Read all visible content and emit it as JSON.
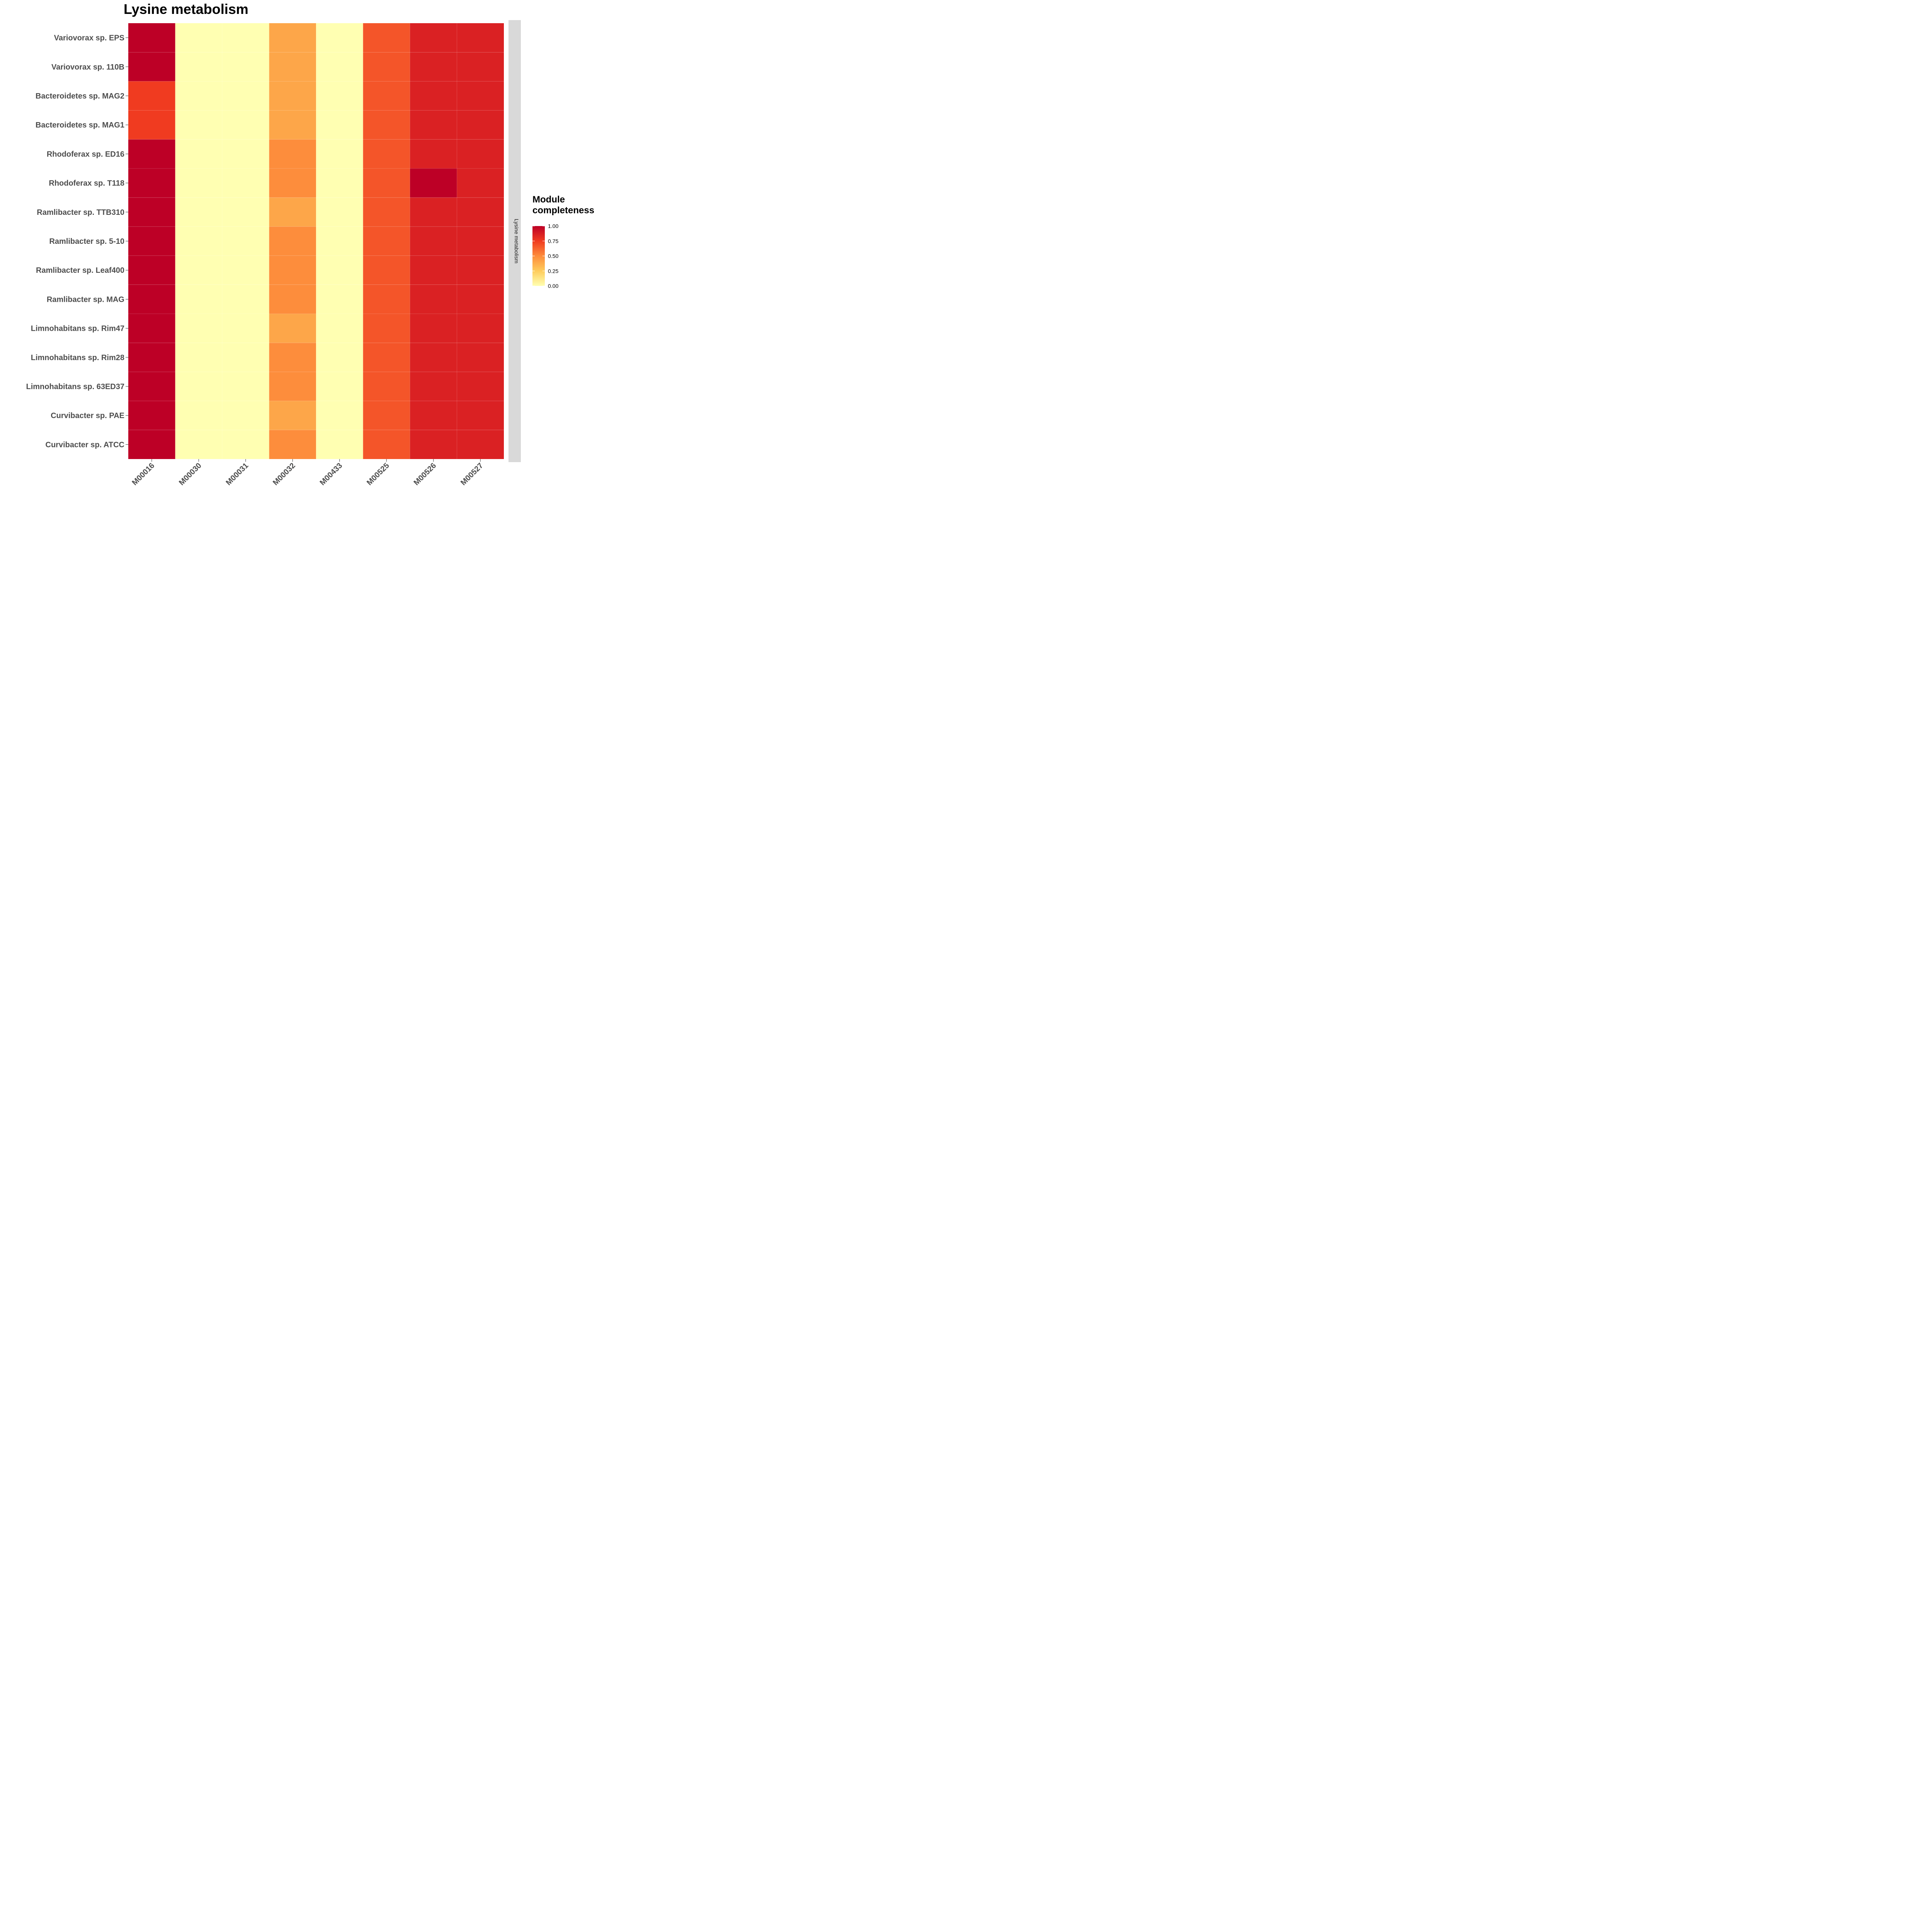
{
  "chart_data": {
    "type": "heatmap",
    "title": "Lysine metabolism",
    "facet_label": "Lysine metabolism",
    "x_categories": [
      "M00016",
      "M00030",
      "M00031",
      "M00032",
      "M00433",
      "M00525",
      "M00526",
      "M00527"
    ],
    "y_categories": [
      "Variovorax sp. EPS",
      "Variovorax sp. 110B",
      "Bacteroidetes sp. MAG2",
      "Bacteroidetes sp. MAG1",
      "Rhodoferax sp. ED16",
      "Rhodoferax sp. T118",
      "Ramlibacter sp. TTB310",
      "Ramlibacter sp. 5-10",
      "Ramlibacter sp. Leaf400",
      "Ramlibacter sp. MAG",
      "Limnohabitans sp. Rim47",
      "Limnohabitans sp. Rim28",
      "Limnohabitans sp. 63ED37",
      "Curvibacter sp. PAE",
      "Curvibacter sp. ATCC"
    ],
    "values": [
      [
        1.0,
        0.0,
        0.0,
        0.4,
        0.0,
        0.67,
        0.86,
        0.86
      ],
      [
        1.0,
        0.0,
        0.0,
        0.4,
        0.0,
        0.67,
        0.86,
        0.86
      ],
      [
        0.75,
        0.0,
        0.0,
        0.4,
        0.0,
        0.67,
        0.86,
        0.86
      ],
      [
        0.75,
        0.0,
        0.0,
        0.4,
        0.0,
        0.67,
        0.86,
        0.86
      ],
      [
        1.0,
        0.0,
        0.0,
        0.5,
        0.0,
        0.67,
        0.86,
        0.86
      ],
      [
        1.0,
        0.0,
        0.0,
        0.5,
        0.0,
        0.67,
        1.0,
        0.86
      ],
      [
        1.0,
        0.0,
        0.0,
        0.4,
        0.0,
        0.67,
        0.86,
        0.86
      ],
      [
        1.0,
        0.0,
        0.0,
        0.5,
        0.0,
        0.67,
        0.86,
        0.86
      ],
      [
        1.0,
        0.0,
        0.0,
        0.5,
        0.0,
        0.67,
        0.86,
        0.86
      ],
      [
        1.0,
        0.0,
        0.0,
        0.5,
        0.0,
        0.67,
        0.86,
        0.86
      ],
      [
        1.0,
        0.0,
        0.0,
        0.4,
        0.0,
        0.67,
        0.86,
        0.86
      ],
      [
        1.0,
        0.0,
        0.0,
        0.5,
        0.0,
        0.67,
        0.86,
        0.86
      ],
      [
        1.0,
        0.0,
        0.0,
        0.5,
        0.0,
        0.67,
        0.86,
        0.86
      ],
      [
        1.0,
        0.0,
        0.0,
        0.4,
        0.0,
        0.67,
        0.86,
        0.86
      ],
      [
        1.0,
        0.0,
        0.0,
        0.5,
        0.0,
        0.67,
        0.86,
        0.86
      ]
    ],
    "color_scale": {
      "name": "YlOrRd",
      "stops": [
        {
          "value": 0.0,
          "color": "#ffffb2"
        },
        {
          "value": 0.25,
          "color": "#fecc5c"
        },
        {
          "value": 0.5,
          "color": "#fd8d3c"
        },
        {
          "value": 0.75,
          "color": "#f03b20"
        },
        {
          "value": 1.0,
          "color": "#bd0026"
        }
      ],
      "limits": [
        0,
        1
      ]
    },
    "legend": {
      "title_lines": [
        "Module",
        "completeness"
      ],
      "ticks": [
        "1.00",
        "0.75",
        "0.50",
        "0.25",
        "0.00"
      ],
      "tick_values": [
        1.0,
        0.75,
        0.5,
        0.25,
        0.0
      ],
      "position": "right"
    },
    "strip_color": "#d9d9d9",
    "grid": true
  }
}
